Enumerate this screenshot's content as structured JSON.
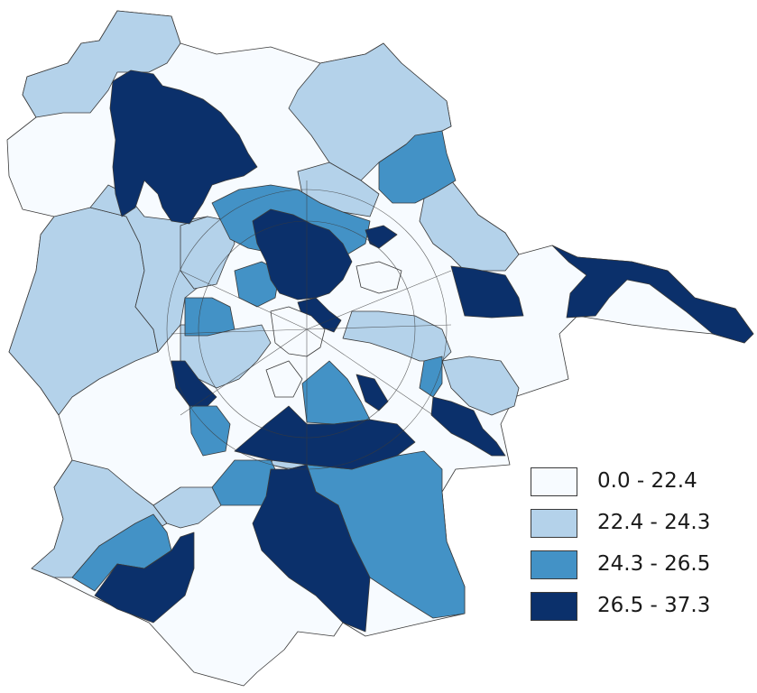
{
  "map": {
    "palette": {
      "class1": "#f7fbff",
      "class2": "#b4d2ea",
      "class3": "#4392c6",
      "class4": "#0b306b"
    },
    "boundary_color": "#3a3a3a"
  },
  "legend": {
    "items": [
      {
        "label": "0.0 - 22.4",
        "color": "#f7fbff"
      },
      {
        "label": "22.4 - 24.3",
        "color": "#b4d2ea"
      },
      {
        "label": "24.3 - 26.5",
        "color": "#4392c6"
      },
      {
        "label": "26.5 - 37.3",
        "color": "#0b306b"
      }
    ]
  }
}
